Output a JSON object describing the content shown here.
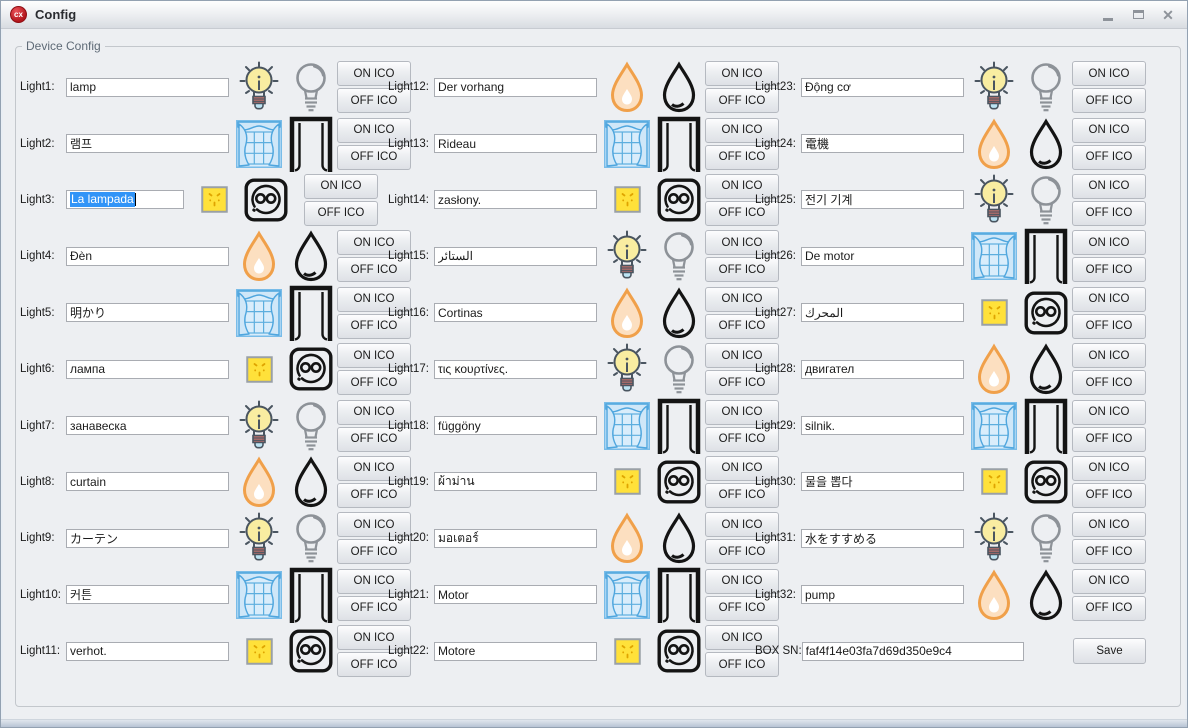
{
  "window": {
    "title": "Config",
    "app_icon_text": "cx",
    "controls": [
      "minimize",
      "maximize",
      "close"
    ]
  },
  "groupbox": {
    "title": "Device Config"
  },
  "buttons": {
    "on_label": "ON ICO",
    "off_label": "OFF ICO"
  },
  "save_label": "Save",
  "box_sn": {
    "label": "BOX SN:",
    "value": "faf4f14e03fa7d69d350e9c4"
  },
  "colors": {
    "selection_blue": "#3194f7",
    "titlebar_icon_red": "#c4161d",
    "bulb_yellow": "#f9eda1",
    "curtain_blue": "#5caede",
    "socket_yellow": "#ffe13a",
    "drop_orange": "#f0a04a"
  },
  "lights": [
    {
      "label": "Light1:",
      "value": "lamp",
      "icon": "bulb",
      "selected": false
    },
    {
      "label": "Light2:",
      "value": "램프",
      "icon": "curtain",
      "selected": false
    },
    {
      "label": "Light3:",
      "value": "La lampada",
      "icon": "socket",
      "selected": true
    },
    {
      "label": "Light4:",
      "value": "Đèn",
      "icon": "drop",
      "selected": false
    },
    {
      "label": "Light5:",
      "value": "明かり",
      "icon": "curtain",
      "selected": false
    },
    {
      "label": "Light6:",
      "value": "лампа",
      "icon": "socket",
      "selected": false
    },
    {
      "label": "Light7:",
      "value": "занавеска",
      "icon": "bulb",
      "selected": false
    },
    {
      "label": "Light8:",
      "value": "curtain",
      "icon": "drop",
      "selected": false
    },
    {
      "label": "Light9:",
      "value": "カーテン",
      "icon": "bulb",
      "selected": false
    },
    {
      "label": "Light10:",
      "value": "커튼",
      "icon": "curtain",
      "selected": false
    },
    {
      "label": "Light11:",
      "value": "verhot.",
      "icon": "socket",
      "selected": false
    },
    {
      "label": "Light12:",
      "value": "Der vorhang",
      "icon": "drop",
      "selected": false
    },
    {
      "label": "Light13:",
      "value": "Rideau",
      "icon": "curtain",
      "selected": false
    },
    {
      "label": "Light14:",
      "value": "zasłony.",
      "icon": "socket",
      "selected": false
    },
    {
      "label": "Light15:",
      "value": "الستائر",
      "icon": "bulb",
      "selected": false
    },
    {
      "label": "Light16:",
      "value": "Cortinas",
      "icon": "drop",
      "selected": false
    },
    {
      "label": "Light17:",
      "value": "τις κουρτίνες.",
      "icon": "bulb",
      "selected": false
    },
    {
      "label": "Light18:",
      "value": "függöny",
      "icon": "curtain",
      "selected": false
    },
    {
      "label": "Light19:",
      "value": "ผ้าม่าน",
      "icon": "socket",
      "selected": false
    },
    {
      "label": "Light20:",
      "value": "มอเตอร์",
      "icon": "drop",
      "selected": false
    },
    {
      "label": "Light21:",
      "value": "Motor",
      "icon": "curtain",
      "selected": false
    },
    {
      "label": "Light22:",
      "value": "Motore",
      "icon": "socket",
      "selected": false
    },
    {
      "label": "Light23:",
      "value": "Động cơ",
      "icon": "bulb",
      "selected": false
    },
    {
      "label": "Light24:",
      "value": "電機",
      "icon": "drop",
      "selected": false
    },
    {
      "label": "Light25:",
      "value": "전기 기계",
      "icon": "bulb",
      "selected": false
    },
    {
      "label": "Light26:",
      "value": "De motor",
      "icon": "curtain",
      "selected": false
    },
    {
      "label": "Light27:",
      "value": "المحرك",
      "icon": "socket",
      "selected": false
    },
    {
      "label": "Light28:",
      "value": "двигател",
      "icon": "drop",
      "selected": false
    },
    {
      "label": "Light29:",
      "value": "silnik.",
      "icon": "curtain",
      "selected": false
    },
    {
      "label": "Light30:",
      "value": "물을 뽑다",
      "icon": "socket",
      "selected": false
    },
    {
      "label": "Light31:",
      "value": "水をすすめる",
      "icon": "bulb",
      "selected": false
    },
    {
      "label": "Light32:",
      "value": "pump",
      "icon": "drop",
      "selected": false
    }
  ]
}
